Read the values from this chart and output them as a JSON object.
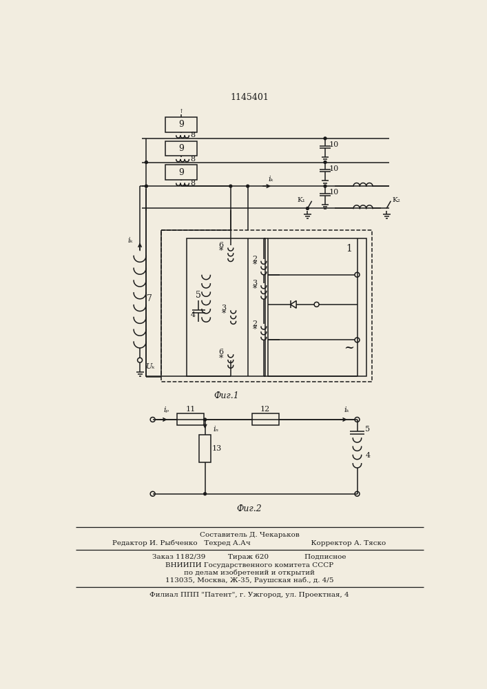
{
  "title": "1145401",
  "bg_color": "#f2ede0",
  "line_color": "#1a1a1a",
  "footer_lines": [
    "Составитель Д. Чекарьков",
    "Редактор И. Рыбченко   Техред А.Ач                           Корректор А. Тяско",
    "Заказ 1182/39          Тираж 620                Подписное",
    "ВНИИПИ Государственного комитета СССР",
    "по делам изобретений и открытий",
    "113035, Москва, Ж-35, Раушская наб., д. 4/5",
    "Филиал ППП \"Патент\", г. Ужгород, ул. Проектная, 4"
  ]
}
